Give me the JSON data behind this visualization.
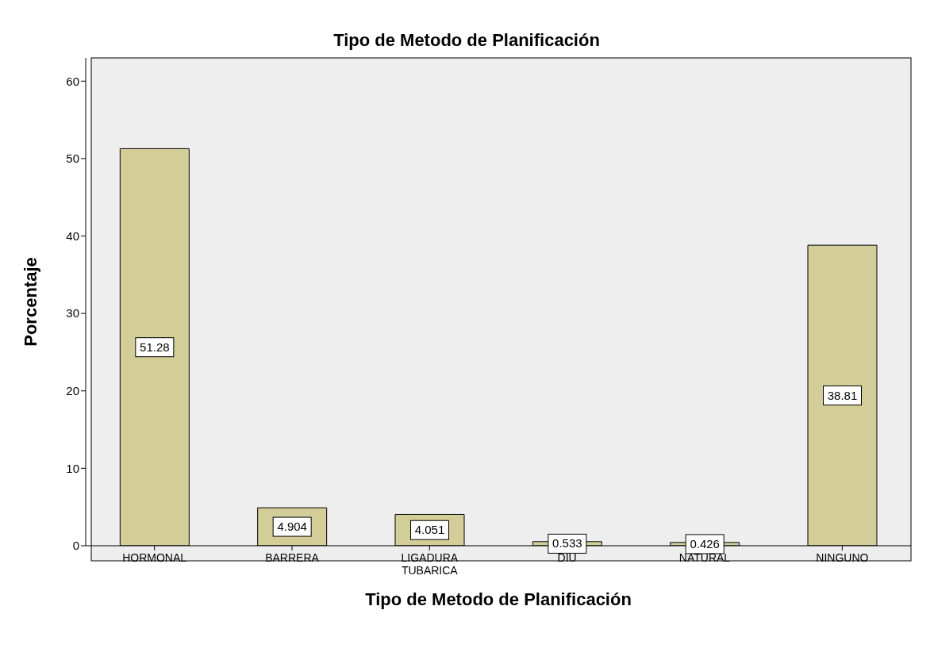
{
  "chart_data": {
    "type": "bar",
    "title": "Tipo de Metodo de Planificación",
    "xlabel": "Tipo de Metodo de Planificación",
    "ylabel": "Porcentaje",
    "categories": [
      "HORMONAL",
      "BARRERA",
      "LIGADURA\nTUBARICA",
      "DIU",
      "NATURAL",
      "NINGUNO"
    ],
    "values": [
      51.28,
      4.904,
      4.051,
      0.533,
      0.426,
      38.81
    ],
    "color": "#d3cd98",
    "ylim": [
      0,
      63
    ],
    "yticks": [
      0,
      10,
      20,
      30,
      40,
      50,
      60
    ],
    "data_labels": true,
    "grid": false
  }
}
